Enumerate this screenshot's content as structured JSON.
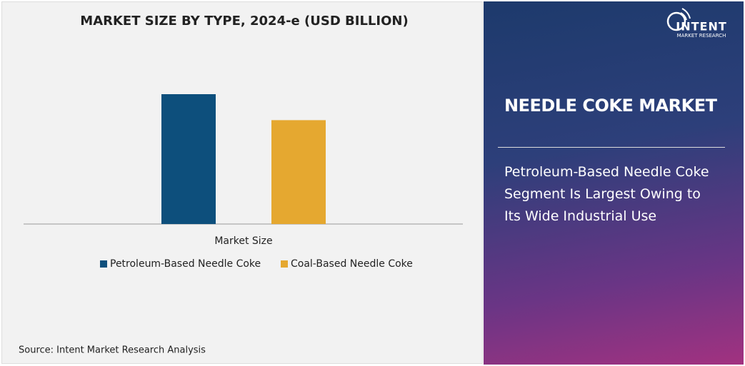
{
  "chart_data": {
    "type": "bar",
    "title": "MARKET SIZE BY TYPE, 2024-e (USD BILLION)",
    "categories": [
      "Market Size"
    ],
    "series": [
      {
        "name": "Petroleum-Based Needle Coke",
        "color": "#0d4f7c",
        "values": [
          1.0
        ]
      },
      {
        "name": "Coal-Based Needle Coke",
        "color": "#e5a830",
        "values": [
          0.8
        ]
      }
    ],
    "legend": "bottom"
  },
  "source": "Source: Intent Market Research Analysis",
  "panel": {
    "title": "NEEDLE COKE MARKET",
    "headline": "Petroleum-Based Needle Coke Segment Is Largest Owing to Its Wide Industrial Use"
  },
  "logo": {
    "name": "INTENT",
    "tagline": "MARKET RESEARCH"
  }
}
